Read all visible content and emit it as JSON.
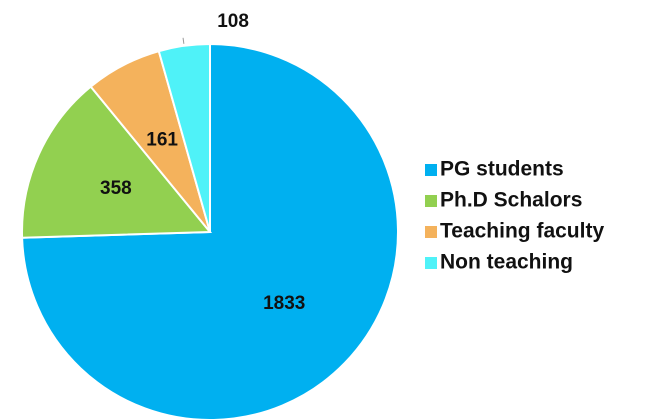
{
  "chart_data": {
    "type": "pie",
    "categories": [
      "PG students",
      "Ph.D Schalors",
      "Teaching faculty",
      "Non teaching"
    ],
    "values": [
      1833,
      358,
      161,
      108
    ],
    "colors": [
      "#00b0f0",
      "#92d050",
      "#f4b25c",
      "#4ff2f8"
    ],
    "legend": "right"
  }
}
